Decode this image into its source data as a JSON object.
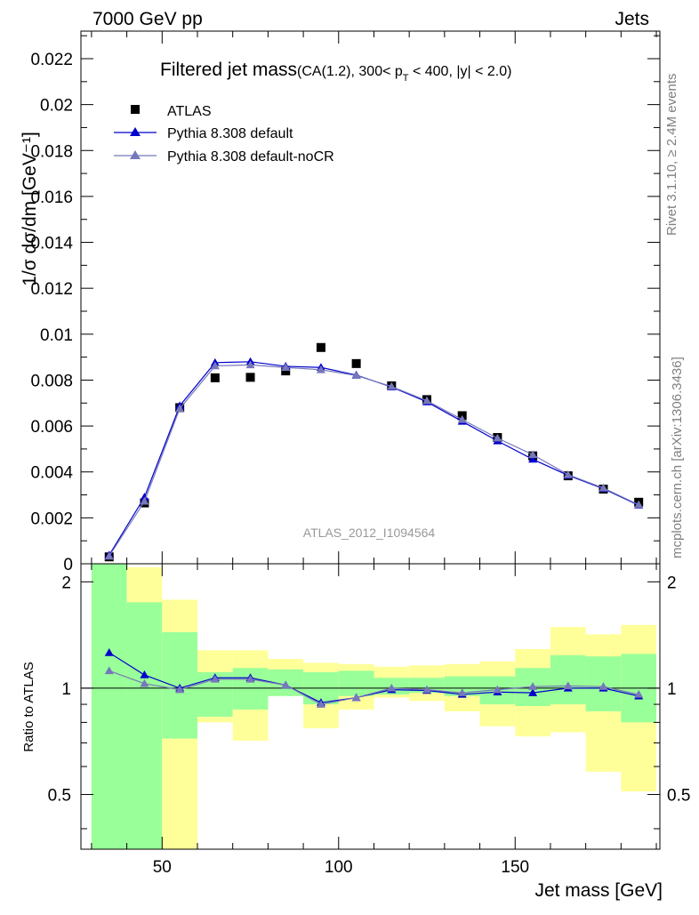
{
  "header": {
    "left": "7000 GeV pp",
    "right": "Jets"
  },
  "side_labels": {
    "rivet": "Rivet 3.1.10, ≥ 2.4M events",
    "mcplots": "mcplots.cern.ch [arXiv:1306.3436]"
  },
  "chart_data": {
    "type": "scatter",
    "title_main": "Filtered jet mass",
    "title_cuts": "(CA(1.2), 300< p",
    "title_sub": "T",
    "title_cuts_end": " < 400, |y| < 2.0)",
    "watermark": "ATLAS_2012_I1094564",
    "xlabel": "Jet mass [GeV]",
    "ylabel": "1/σ dσ/dm [GeV⁻¹]",
    "ratio_ylabel": "Ratio to ATLAS",
    "xlim": [
      27,
      191
    ],
    "ylim": [
      0,
      0.0232
    ],
    "ratio_ylim": [
      0.35,
      2.25
    ],
    "x_ticks": [
      50,
      100,
      150
    ],
    "y_ticks": [
      "0",
      "0.002",
      "0.004",
      "0.006",
      "0.008",
      "0.01",
      "0.012",
      "0.014",
      "0.016",
      "0.018",
      "0.02",
      "0.022"
    ],
    "ratio_ticks": [
      "0.5",
      "1",
      "2"
    ],
    "bins": [
      [
        30,
        40
      ],
      [
        40,
        50
      ],
      [
        50,
        60
      ],
      [
        60,
        70
      ],
      [
        70,
        80
      ],
      [
        80,
        90
      ],
      [
        90,
        100
      ],
      [
        100,
        110
      ],
      [
        110,
        120
      ],
      [
        120,
        130
      ],
      [
        130,
        140
      ],
      [
        140,
        150
      ],
      [
        150,
        160
      ],
      [
        160,
        170
      ],
      [
        170,
        180
      ],
      [
        180,
        190
      ]
    ],
    "legend": [
      "ATLAS",
      "Pythia 8.308 default",
      "Pythia 8.308 default-noCR"
    ],
    "series": [
      {
        "name": "ATLAS",
        "x": [
          35,
          45,
          55,
          65,
          75,
          85,
          95,
          105,
          115,
          125,
          135,
          145,
          155,
          165,
          175,
          185
        ],
        "y": [
          0.0003,
          0.00265,
          0.0068,
          0.0081,
          0.00812,
          0.0084,
          0.00942,
          0.00872,
          0.00775,
          0.00715,
          0.00645,
          0.0055,
          0.0047,
          0.00383,
          0.00325,
          0.00268
        ],
        "color": "#000000"
      },
      {
        "name": "Pythia 8.308 default",
        "x": [
          35,
          45,
          55,
          65,
          75,
          85,
          95,
          105,
          115,
          125,
          135,
          145,
          155,
          165,
          175,
          185
        ],
        "y": [
          0.00038,
          0.0029,
          0.00688,
          0.00876,
          0.0088,
          0.0086,
          0.00855,
          0.00822,
          0.0077,
          0.00705,
          0.0062,
          0.00535,
          0.00455,
          0.00385,
          0.00327,
          0.00255
        ],
        "ratio": [
          1.26,
          1.09,
          1.0,
          1.07,
          1.07,
          1.02,
          0.91,
          0.94,
          0.99,
          0.985,
          0.96,
          0.975,
          0.97,
          1.0,
          1.0,
          0.95
        ],
        "color": "#0000cc"
      },
      {
        "name": "Pythia 8.308 default-noCR",
        "x": [
          35,
          45,
          55,
          65,
          75,
          85,
          95,
          105,
          115,
          125,
          135,
          145,
          155,
          165,
          175,
          185
        ],
        "y": [
          0.00033,
          0.00272,
          0.00676,
          0.00862,
          0.00866,
          0.00855,
          0.00845,
          0.0082,
          0.00772,
          0.0071,
          0.00628,
          0.00547,
          0.00475,
          0.00388,
          0.0033,
          0.00257
        ],
        "ratio": [
          1.12,
          1.03,
          0.99,
          1.06,
          1.06,
          1.02,
          0.9,
          0.94,
          1.0,
          0.99,
          0.97,
          0.99,
          1.01,
          1.015,
          1.01,
          0.96
        ],
        "color": "#7777bb"
      }
    ],
    "band_inner": [
      [
        0.35,
        2.25
      ],
      [
        0.35,
        1.75
      ],
      [
        0.72,
        1.44
      ],
      [
        0.83,
        1.11
      ],
      [
        0.87,
        1.14
      ],
      [
        0.95,
        1.13
      ],
      [
        0.9,
        1.11
      ],
      [
        0.95,
        1.12
      ],
      [
        0.96,
        1.07
      ],
      [
        0.97,
        1.07
      ],
      [
        0.95,
        1.08
      ],
      [
        0.9,
        1.08
      ],
      [
        0.89,
        1.14
      ],
      [
        0.9,
        1.24
      ],
      [
        0.86,
        1.23
      ],
      [
        0.8,
        1.25
      ]
    ],
    "band_outer": [
      [
        0.35,
        2.25
      ],
      [
        0.35,
        2.2
      ],
      [
        0.35,
        1.78
      ],
      [
        0.8,
        1.28
      ],
      [
        0.71,
        1.28
      ],
      [
        0.95,
        1.21
      ],
      [
        0.77,
        1.18
      ],
      [
        0.87,
        1.17
      ],
      [
        0.94,
        1.15
      ],
      [
        0.92,
        1.16
      ],
      [
        0.86,
        1.17
      ],
      [
        0.78,
        1.19
      ],
      [
        0.73,
        1.29
      ],
      [
        0.75,
        1.49
      ],
      [
        0.58,
        1.42
      ],
      [
        0.51,
        1.51
      ]
    ]
  }
}
